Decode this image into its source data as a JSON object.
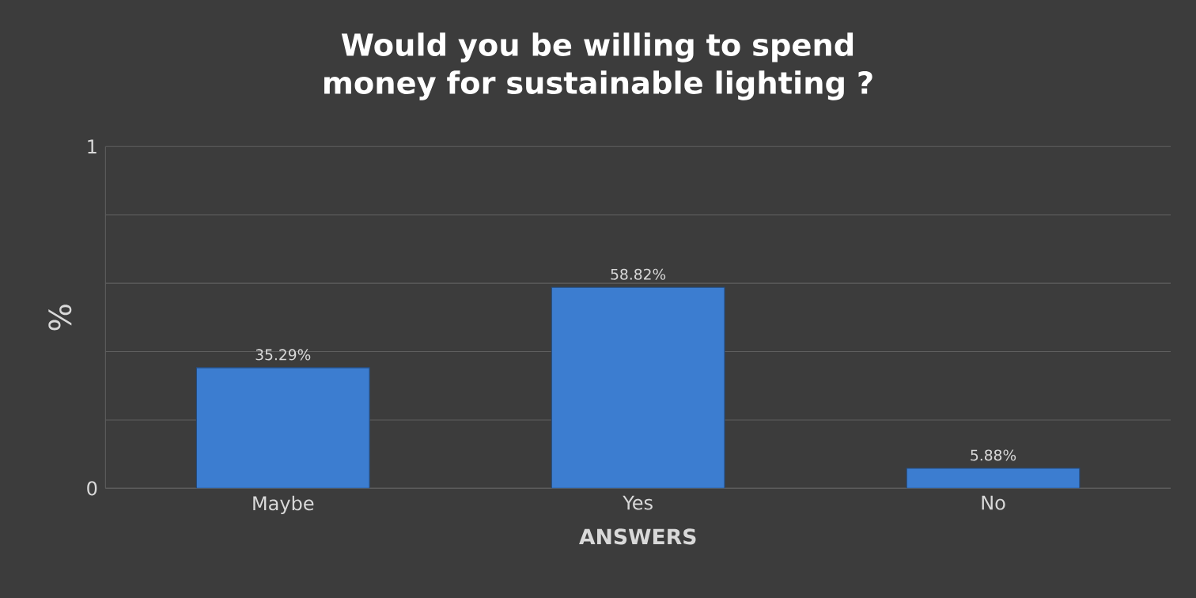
{
  "chart_data": {
    "type": "bar",
    "title": "Would you be willing to spend money for sustainable lighting ?",
    "xlabel": "ANSWERS",
    "ylabel": "%",
    "categories": [
      "Maybe",
      "Yes",
      "No"
    ],
    "values": [
      0.3529,
      0.5882,
      0.0588
    ],
    "value_labels": [
      "35.29%",
      "58.82%",
      "5.88%"
    ],
    "color": "#3c7dd0",
    "ylim": [
      0,
      1
    ],
    "yticks": [
      0,
      {
        "value": 0.2,
        "label": null
      },
      {
        "value": 0.4,
        "label": null
      },
      {
        "value": 0.6,
        "label": null
      },
      {
        "value": 0.8,
        "label": null
      },
      1
    ],
    "grid": "y"
  }
}
